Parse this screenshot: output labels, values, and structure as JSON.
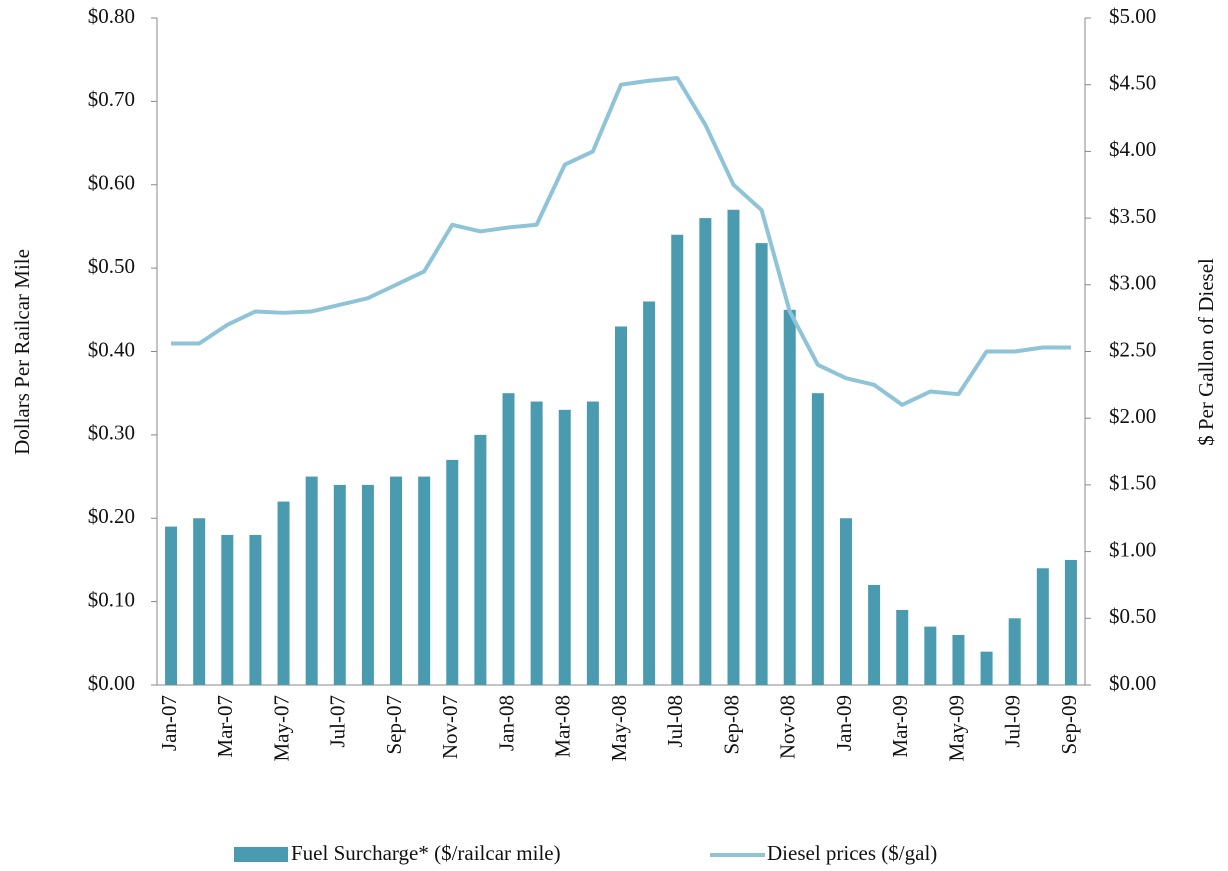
{
  "chart_data": {
    "type": "bar_line",
    "y_label": "Dollars  Per Railcar Mile",
    "y2_label": "$ Per Gallon of Diesel",
    "categories": [
      "Jan-07",
      null,
      "Mar-07",
      null,
      "May-07",
      null,
      "Jul-07",
      null,
      "Sep-07",
      null,
      "Nov-07",
      null,
      "Jan-08",
      null,
      "Mar-08",
      null,
      "May-08",
      null,
      "Jul-08",
      null,
      "Sep-08",
      null,
      "Nov-08",
      null,
      "Jan-09",
      null,
      "Mar-09",
      null,
      "May-09",
      null,
      "Jul-09",
      null,
      "Sep-09"
    ],
    "series": [
      {
        "name": "Fuel Surcharge* ($/railcar mile)",
        "color": "#4a9bb0",
        "kind": "bar",
        "values": [
          0.19,
          0.2,
          0.18,
          0.18,
          0.22,
          0.25,
          0.24,
          0.24,
          0.25,
          0.25,
          0.27,
          0.3,
          0.35,
          0.34,
          0.33,
          0.34,
          0.43,
          0.46,
          0.54,
          0.56,
          0.57,
          0.53,
          0.45,
          0.35,
          0.2,
          0.12,
          0.09,
          0.07,
          0.06,
          0.04,
          0.08,
          0.14,
          0.15
        ]
      },
      {
        "name": "Diesel prices ($/gal)",
        "color": "#8fc3d8",
        "kind": "line",
        "axis": "y2",
        "values": [
          2.56,
          2.56,
          2.7,
          2.8,
          2.79,
          2.8,
          2.85,
          2.9,
          3.0,
          3.1,
          3.45,
          3.4,
          3.43,
          3.45,
          3.9,
          4.0,
          4.5,
          4.53,
          4.55,
          4.2,
          3.75,
          3.56,
          2.8,
          2.4,
          2.3,
          2.25,
          2.1,
          2.2,
          2.18,
          2.5,
          2.5,
          2.53,
          2.53
        ]
      }
    ],
    "ylim": [
      0,
      0.8
    ],
    "yticks": [
      {
        "value": 0,
        "label": "$0.00"
      },
      {
        "value": 0.1,
        "label": "$0.10"
      },
      {
        "value": 0.2,
        "label": "$0.20"
      },
      {
        "value": 0.3,
        "label": "$0.30"
      },
      {
        "value": 0.4,
        "label": "$0.40"
      },
      {
        "value": 0.5,
        "label": "$0.50"
      },
      {
        "value": 0.6,
        "label": "$0.60"
      },
      {
        "value": 0.7,
        "label": "$0.70"
      },
      {
        "value": 0.8,
        "label": "$0.80"
      }
    ],
    "y2lim": [
      0,
      5
    ],
    "y2ticks": [
      {
        "value": 0,
        "label": "$0.00"
      },
      {
        "value": 0.5,
        "label": "$0.50"
      },
      {
        "value": 1,
        "label": "$1.00"
      },
      {
        "value": 1.5,
        "label": "$1.50"
      },
      {
        "value": 2,
        "label": "$2.00"
      },
      {
        "value": 2.5,
        "label": "$2.50"
      },
      {
        "value": 3,
        "label": "$3.00"
      },
      {
        "value": 3.5,
        "label": "$3.50"
      },
      {
        "value": 4,
        "label": "$4.00"
      },
      {
        "value": 4.5,
        "label": "$4.50"
      },
      {
        "value": 5,
        "label": "$5.00"
      }
    ],
    "legend": "bottom"
  }
}
